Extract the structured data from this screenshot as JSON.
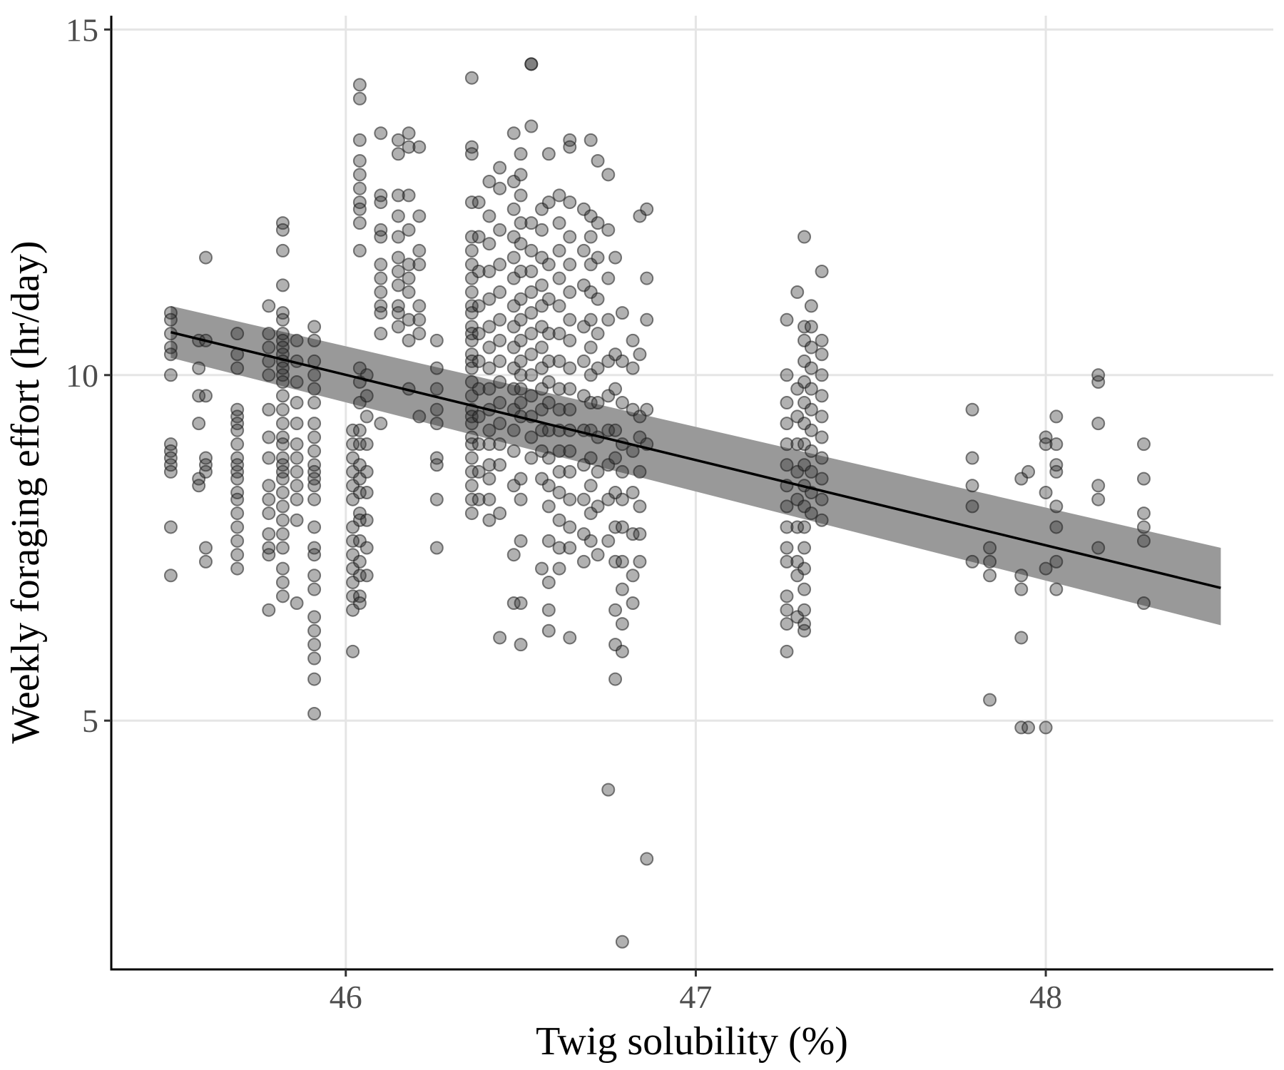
{
  "chart_data": {
    "type": "scatter",
    "title": "",
    "xlabel": "Twig solubility (%)",
    "ylabel": "Weekly foraging effort (hr/day)",
    "xlim": [
      45.33,
      48.65
    ],
    "ylim": [
      1.4,
      15.2
    ],
    "x_ticks": [
      46,
      47,
      48
    ],
    "x_tick_labels": [
      "46",
      "47",
      "48"
    ],
    "y_ticks": [
      5,
      10,
      15
    ],
    "y_tick_labels": [
      "5",
      "10",
      "15"
    ],
    "grid": true,
    "legend": "none",
    "point_color": "#333333",
    "point_opacity": 0.38,
    "fit_line_color": "#000000",
    "band_color": "#999999",
    "fit": {
      "x": [
        45.5,
        48.5
      ],
      "y": [
        10.62,
        6.92
      ],
      "ci_lower": [
        10.25,
        6.38
      ],
      "ci_upper": [
        11.0,
        7.5
      ]
    },
    "points": {
      "columns": [
        {
          "x": 45.5,
          "y": [
            10.9,
            10.8,
            10.6,
            10.4,
            10.3,
            10.0,
            9.0,
            8.9,
            8.8,
            8.7,
            8.6,
            7.8,
            7.1
          ]
        },
        {
          "x": 45.58,
          "y": [
            10.5,
            10.1,
            9.7,
            9.3,
            8.5,
            8.4
          ]
        },
        {
          "x": 45.6,
          "y": [
            11.7,
            10.5,
            9.7,
            8.8,
            8.7,
            8.6,
            7.5,
            7.3
          ]
        },
        {
          "x": 45.69,
          "y": [
            10.6,
            10.3,
            10.1,
            9.5,
            9.4,
            9.3,
            9.2,
            9.0,
            8.8,
            8.7,
            8.6,
            8.5,
            8.3,
            8.2,
            8.0,
            7.8,
            7.6,
            7.4,
            7.2
          ]
        },
        {
          "x": 45.78,
          "y": [
            11.0,
            10.6,
            10.4,
            10.2,
            10.0,
            9.5,
            9.1,
            8.8,
            8.4,
            8.2,
            8.0,
            7.7,
            7.5,
            7.4,
            6.6
          ]
        },
        {
          "x": 45.82,
          "y": [
            12.2,
            12.1,
            11.8,
            11.3,
            10.9,
            10.8,
            10.6,
            10.5,
            10.4,
            10.3,
            10.2,
            10.1,
            10.0,
            9.9,
            9.7,
            9.5,
            9.3,
            9.1,
            9.0,
            8.8,
            8.7,
            8.6,
            8.5,
            8.3,
            8.1,
            7.9,
            7.7,
            7.5,
            7.2,
            7.0,
            6.8
          ]
        },
        {
          "x": 45.86,
          "y": [
            10.5,
            10.2,
            9.9,
            9.6,
            9.3,
            9.0,
            8.8,
            8.6,
            8.4,
            8.2,
            7.9,
            6.7
          ]
        },
        {
          "x": 45.91,
          "y": [
            10.7,
            10.5,
            10.2,
            10.0,
            9.8,
            9.6,
            9.3,
            9.1,
            8.9,
            8.7,
            8.6,
            8.5,
            8.4,
            8.2,
            7.8,
            7.5,
            7.4,
            7.1,
            6.9,
            6.5,
            6.3,
            6.1,
            5.9,
            5.6,
            5.1
          ]
        },
        {
          "x": 46.02,
          "y": [
            9.2,
            9.0,
            8.8,
            8.6,
            8.4,
            8.2,
            7.8,
            7.6,
            7.4,
            7.2,
            7.0,
            6.8,
            6.6,
            6.0
          ]
        },
        {
          "x": 46.04,
          "y": [
            14.2,
            14.0,
            13.4,
            13.1,
            12.9,
            12.7,
            12.5,
            12.4,
            12.2,
            11.8,
            10.1,
            9.9,
            9.6,
            9.2,
            9.0,
            8.7,
            8.5,
            8.3,
            8.0,
            7.9,
            7.6,
            7.3,
            7.1,
            6.8,
            6.7
          ]
        },
        {
          "x": 46.06,
          "y": [
            10.0,
            9.7,
            9.4,
            9.0,
            8.6,
            8.3,
            7.9,
            7.5,
            7.1
          ]
        },
        {
          "x": 46.1,
          "y": [
            13.5,
            12.6,
            12.5,
            12.1,
            12.0,
            11.6,
            11.4,
            11.2,
            11.0,
            10.9,
            10.6,
            9.3
          ]
        },
        {
          "x": 46.15,
          "y": [
            13.4,
            13.2,
            12.6,
            12.3,
            12.0,
            11.7,
            11.5,
            11.3,
            11.0,
            10.9,
            10.7
          ]
        },
        {
          "x": 46.18,
          "y": [
            13.5,
            13.3,
            12.6,
            12.1,
            11.6,
            11.4,
            11.2,
            10.8,
            10.5,
            9.8
          ]
        },
        {
          "x": 46.21,
          "y": [
            13.3,
            12.3,
            11.8,
            11.6,
            11.0,
            10.8,
            10.6,
            9.4
          ]
        },
        {
          "x": 46.26,
          "y": [
            10.5,
            10.1,
            9.8,
            9.5,
            9.3,
            8.8,
            8.7,
            8.2,
            7.5
          ]
        },
        {
          "x": 46.36,
          "y": [
            14.3,
            13.3,
            13.2,
            12.5,
            12.0,
            11.8,
            11.6,
            11.4,
            11.2,
            11.0,
            10.9,
            10.7,
            10.6,
            10.5,
            10.3,
            10.2,
            10.1,
            9.9,
            9.7,
            9.5,
            9.4,
            9.3,
            9.1,
            9.0,
            8.8,
            8.6,
            8.4,
            8.2,
            8.0
          ]
        },
        {
          "x": 46.38,
          "y": [
            12.5,
            12.0,
            11.5,
            11.0,
            10.6,
            10.2,
            9.8,
            9.4,
            9.0,
            8.6,
            8.2
          ]
        },
        {
          "x": 46.41,
          "y": [
            12.8,
            12.3,
            11.9,
            11.5,
            11.1,
            10.7,
            10.4,
            10.1,
            9.8,
            9.5,
            9.2,
            9.0,
            8.7,
            8.5,
            8.2,
            7.9
          ]
        },
        {
          "x": 46.44,
          "y": [
            13.0,
            12.7,
            12.1,
            11.6,
            11.2,
            10.8,
            10.5,
            10.2,
            9.9,
            9.6,
            9.3,
            9.0,
            8.7,
            8.0,
            6.2
          ]
        },
        {
          "x": 46.48,
          "y": [
            13.5,
            12.8,
            12.4,
            12.0,
            11.7,
            11.4,
            11.0,
            10.7,
            10.4,
            10.1,
            9.8,
            9.5,
            9.2,
            8.9,
            8.4,
            7.4,
            6.7
          ]
        },
        {
          "x": 46.5,
          "y": [
            13.2,
            12.9,
            12.6,
            12.2,
            11.9,
            11.5,
            11.1,
            10.8,
            10.5,
            10.2,
            10.0,
            9.8,
            9.6,
            9.4,
            8.5,
            8.2,
            7.6,
            6.7,
            6.1
          ]
        },
        {
          "x": 46.53,
          "y": [
            14.5,
            14.5,
            13.6,
            12.2,
            11.8,
            11.5,
            11.2,
            10.9,
            10.6,
            10.3,
            10.0,
            9.7,
            9.4,
            9.1,
            8.8
          ]
        },
        {
          "x": 46.56,
          "y": [
            12.4,
            12.1,
            11.7,
            11.3,
            11.0,
            10.7,
            10.4,
            10.1,
            9.8,
            9.5,
            9.2,
            8.9,
            8.5,
            7.2
          ]
        },
        {
          "x": 46.58,
          "y": [
            13.2,
            12.5,
            11.6,
            11.1,
            10.6,
            10.2,
            9.9,
            9.6,
            9.2,
            8.8,
            8.4,
            8.1,
            7.6,
            7.0,
            6.6,
            6.3
          ]
        },
        {
          "x": 46.61,
          "y": [
            12.6,
            12.2,
            11.8,
            11.4,
            11.0,
            10.6,
            10.2,
            9.8,
            9.5,
            9.2,
            8.9,
            8.6,
            8.3,
            7.9,
            7.5,
            7.2
          ]
        },
        {
          "x": 46.64,
          "y": [
            13.4,
            13.3,
            12.5,
            12.0,
            11.6,
            11.2,
            10.8,
            10.5,
            10.1,
            9.8,
            9.5,
            9.2,
            8.9,
            8.6,
            8.2,
            7.8,
            7.5,
            6.2
          ]
        },
        {
          "x": 46.68,
          "y": [
            12.4,
            11.8,
            11.3,
            10.7,
            10.2,
            9.7,
            9.2,
            8.7,
            8.2,
            7.7,
            7.3
          ]
        },
        {
          "x": 46.7,
          "y": [
            13.4,
            12.3,
            12.0,
            11.6,
            11.2,
            10.8,
            10.4,
            10.0,
            9.6,
            9.2,
            8.8,
            8.4,
            8.0,
            7.6
          ]
        },
        {
          "x": 46.72,
          "y": [
            13.1,
            12.2,
            11.7,
            11.1,
            10.6,
            10.1,
            9.6,
            9.1,
            8.6,
            8.1,
            7.4
          ]
        },
        {
          "x": 46.75,
          "y": [
            12.9,
            12.1,
            11.4,
            10.8,
            10.2,
            9.7,
            9.2,
            8.7,
            8.2,
            7.6,
            4.0
          ]
        },
        {
          "x": 46.77,
          "y": [
            11.7,
            10.3,
            9.8,
            9.2,
            8.8,
            8.3,
            7.8,
            7.3,
            6.6,
            6.1,
            5.6
          ]
        },
        {
          "x": 46.79,
          "y": [
            10.9,
            10.2,
            9.6,
            9.0,
            8.6,
            8.2,
            7.8,
            7.3,
            6.9,
            6.4,
            6.0,
            1.8
          ]
        },
        {
          "x": 46.82,
          "y": [
            10.5,
            10.1,
            9.5,
            8.9,
            8.3,
            7.7,
            7.1,
            6.7
          ]
        },
        {
          "x": 46.84,
          "y": [
            12.3,
            10.3,
            9.4,
            9.1,
            8.6,
            8.1,
            7.7,
            7.3
          ]
        },
        {
          "x": 46.86,
          "y": [
            12.4,
            11.4,
            10.8,
            9.5,
            9.0,
            3.0
          ]
        },
        {
          "x": 47.26,
          "y": [
            10.8,
            10.0,
            9.6,
            9.3,
            9.0,
            8.7,
            8.4,
            8.1,
            7.8,
            7.5,
            7.3,
            6.8,
            6.6,
            6.4,
            6.0
          ]
        },
        {
          "x": 47.29,
          "y": [
            11.2,
            9.8,
            9.4,
            9.0,
            8.6,
            8.2,
            7.8,
            7.3,
            7.1,
            6.5
          ]
        },
        {
          "x": 47.31,
          "y": [
            12.0,
            10.7,
            10.5,
            10.2,
            9.9,
            9.6,
            9.3,
            9.0,
            8.7,
            8.4,
            8.1,
            7.8,
            7.5,
            7.2,
            6.9,
            6.6,
            6.4,
            6.3
          ]
        },
        {
          "x": 47.33,
          "y": [
            11.0,
            10.7,
            10.4,
            10.1,
            9.8,
            9.5,
            9.2,
            8.9,
            8.6,
            8.3,
            8.0
          ]
        },
        {
          "x": 47.36,
          "y": [
            11.5,
            10.5,
            10.3,
            10.0,
            9.7,
            9.4,
            9.1,
            8.8,
            8.5,
            8.2,
            7.9
          ]
        },
        {
          "x": 47.79,
          "y": [
            9.5,
            8.8,
            8.4,
            8.1,
            7.3
          ]
        },
        {
          "x": 47.84,
          "y": [
            7.5,
            7.3,
            7.1,
            5.3
          ]
        },
        {
          "x": 47.93,
          "y": [
            8.5,
            7.1,
            6.9,
            6.2,
            4.9
          ]
        },
        {
          "x": 47.95,
          "y": [
            8.6,
            4.9
          ]
        },
        {
          "x": 48.0,
          "y": [
            9.1,
            9.0,
            8.3,
            7.2,
            4.9
          ]
        },
        {
          "x": 48.03,
          "y": [
            9.4,
            9.0,
            8.7,
            8.6,
            8.1,
            7.8,
            7.3,
            6.9
          ]
        },
        {
          "x": 48.15,
          "y": [
            9.9,
            10.0,
            9.3,
            8.4,
            8.2,
            7.5
          ]
        },
        {
          "x": 48.28,
          "y": [
            9.0,
            8.5,
            8.0,
            7.8,
            7.6,
            6.7
          ]
        }
      ]
    }
  }
}
